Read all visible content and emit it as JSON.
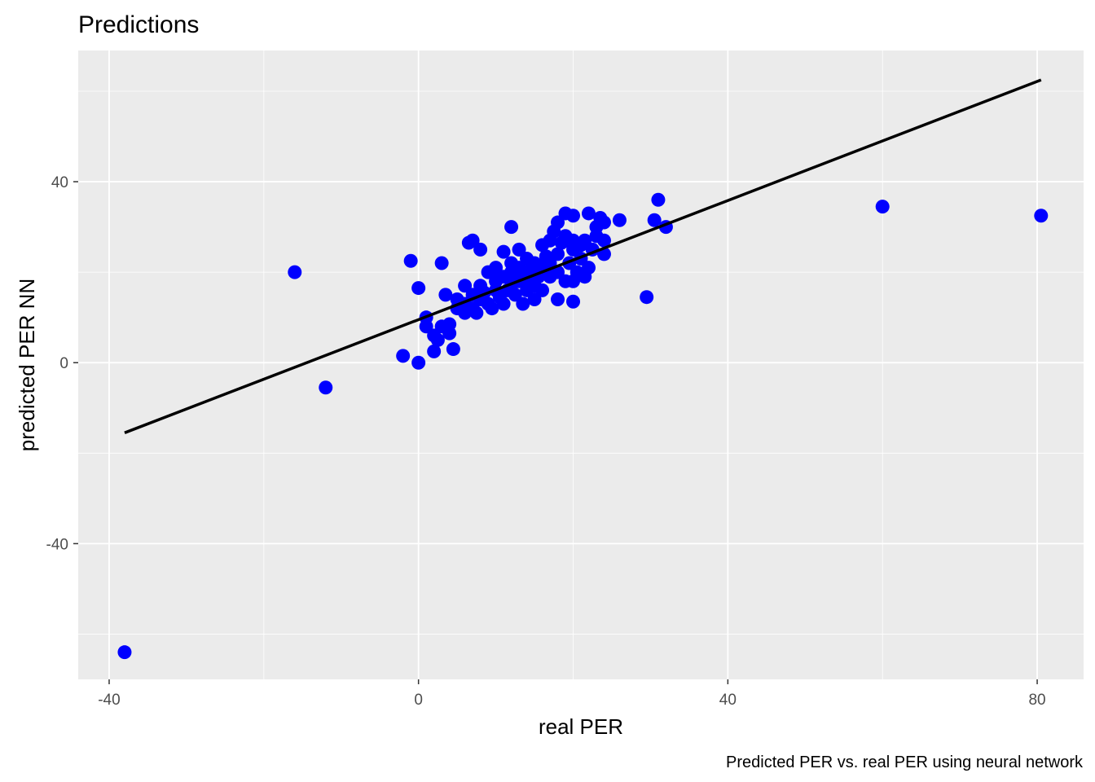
{
  "chart_data": {
    "type": "scatter",
    "title": "Predictions",
    "xlabel": "real PER",
    "ylabel": "predicted PER NN",
    "caption": "Predicted PER vs. real PER using neural network",
    "xlim": [
      -44,
      86
    ],
    "ylim": [
      -70,
      69
    ],
    "x_ticks": [
      -40,
      0,
      40,
      80
    ],
    "x_tick_labels": [
      "-40",
      "0",
      "40",
      "80"
    ],
    "y_ticks": [
      -40,
      0,
      40
    ],
    "y_tick_labels": [
      "-40",
      "0",
      "40"
    ],
    "grid": true,
    "point_color": "#0000ff",
    "line_color": "#000000",
    "panel_background": "#ebebeb",
    "fit_line": {
      "x": [
        -38,
        80.5
      ],
      "y": [
        -15.5,
        62.5
      ]
    },
    "series": [
      {
        "type": "scatter",
        "points": [
          {
            "x": -38,
            "y": -64
          },
          {
            "x": -16,
            "y": 20
          },
          {
            "x": -12,
            "y": -5.5
          },
          {
            "x": -2,
            "y": 1.5
          },
          {
            "x": 0,
            "y": 0
          },
          {
            "x": -1,
            "y": 22.5
          },
          {
            "x": 0,
            "y": 16.5
          },
          {
            "x": 1,
            "y": 10
          },
          {
            "x": 1,
            "y": 8
          },
          {
            "x": 2,
            "y": 6
          },
          {
            "x": 2,
            "y": 2.5
          },
          {
            "x": 2.5,
            "y": 5
          },
          {
            "x": 3,
            "y": 8
          },
          {
            "x": 3,
            "y": 22
          },
          {
            "x": 3.5,
            "y": 15
          },
          {
            "x": 4,
            "y": 6.5
          },
          {
            "x": 4,
            "y": 8.5
          },
          {
            "x": 4.5,
            "y": 3
          },
          {
            "x": 5,
            "y": 12
          },
          {
            "x": 5,
            "y": 14
          },
          {
            "x": 6,
            "y": 11
          },
          {
            "x": 6,
            "y": 13
          },
          {
            "x": 6,
            "y": 17
          },
          {
            "x": 6.5,
            "y": 26.5
          },
          {
            "x": 7,
            "y": 27
          },
          {
            "x": 7,
            "y": 15
          },
          {
            "x": 7,
            "y": 12
          },
          {
            "x": 7.5,
            "y": 11
          },
          {
            "x": 8,
            "y": 25
          },
          {
            "x": 8,
            "y": 17
          },
          {
            "x": 8,
            "y": 14
          },
          {
            "x": 8.5,
            "y": 15.5
          },
          {
            "x": 9,
            "y": 20
          },
          {
            "x": 9,
            "y": 13
          },
          {
            "x": 9.5,
            "y": 12
          },
          {
            "x": 10,
            "y": 16
          },
          {
            "x": 10,
            "y": 18
          },
          {
            "x": 10,
            "y": 21
          },
          {
            "x": 10.5,
            "y": 14.5
          },
          {
            "x": 11,
            "y": 13
          },
          {
            "x": 11,
            "y": 19
          },
          {
            "x": 11,
            "y": 24.5
          },
          {
            "x": 11.5,
            "y": 16
          },
          {
            "x": 12,
            "y": 20
          },
          {
            "x": 12,
            "y": 22
          },
          {
            "x": 12,
            "y": 17
          },
          {
            "x": 12,
            "y": 30
          },
          {
            "x": 12.5,
            "y": 15
          },
          {
            "x": 13,
            "y": 18
          },
          {
            "x": 13,
            "y": 25
          },
          {
            "x": 13,
            "y": 21
          },
          {
            "x": 13.5,
            "y": 13
          },
          {
            "x": 14,
            "y": 16
          },
          {
            "x": 14,
            "y": 19
          },
          {
            "x": 14,
            "y": 23
          },
          {
            "x": 14.5,
            "y": 20.5
          },
          {
            "x": 15,
            "y": 17
          },
          {
            "x": 15,
            "y": 22
          },
          {
            "x": 15,
            "y": 14
          },
          {
            "x": 15.5,
            "y": 19
          },
          {
            "x": 16,
            "y": 21
          },
          {
            "x": 16,
            "y": 26
          },
          {
            "x": 16,
            "y": 16
          },
          {
            "x": 16.5,
            "y": 23.5
          },
          {
            "x": 17,
            "y": 19
          },
          {
            "x": 17,
            "y": 27
          },
          {
            "x": 17,
            "y": 22
          },
          {
            "x": 17.5,
            "y": 29
          },
          {
            "x": 18,
            "y": 24
          },
          {
            "x": 18,
            "y": 31
          },
          {
            "x": 18,
            "y": 20
          },
          {
            "x": 18,
            "y": 14
          },
          {
            "x": 18.5,
            "y": 26.5
          },
          {
            "x": 19,
            "y": 28
          },
          {
            "x": 19,
            "y": 33
          },
          {
            "x": 19,
            "y": 18
          },
          {
            "x": 19.5,
            "y": 22
          },
          {
            "x": 20,
            "y": 25
          },
          {
            "x": 20,
            "y": 27
          },
          {
            "x": 20,
            "y": 32.5
          },
          {
            "x": 20,
            "y": 13.5
          },
          {
            "x": 20,
            "y": 18
          },
          {
            "x": 20.5,
            "y": 20
          },
          {
            "x": 21,
            "y": 26
          },
          {
            "x": 21,
            "y": 23
          },
          {
            "x": 21.5,
            "y": 19
          },
          {
            "x": 21.5,
            "y": 27
          },
          {
            "x": 22,
            "y": 33
          },
          {
            "x": 22,
            "y": 21
          },
          {
            "x": 22.5,
            "y": 25
          },
          {
            "x": 23,
            "y": 30
          },
          {
            "x": 23,
            "y": 28
          },
          {
            "x": 23.5,
            "y": 32
          },
          {
            "x": 24,
            "y": 31
          },
          {
            "x": 24,
            "y": 27
          },
          {
            "x": 24,
            "y": 24
          },
          {
            "x": 26,
            "y": 31.5
          },
          {
            "x": 29.5,
            "y": 14.5
          },
          {
            "x": 30.5,
            "y": 31.5
          },
          {
            "x": 31,
            "y": 36
          },
          {
            "x": 32,
            "y": 30
          },
          {
            "x": 60,
            "y": 34.5
          },
          {
            "x": 80.5,
            "y": 32.5
          }
        ]
      }
    ]
  }
}
